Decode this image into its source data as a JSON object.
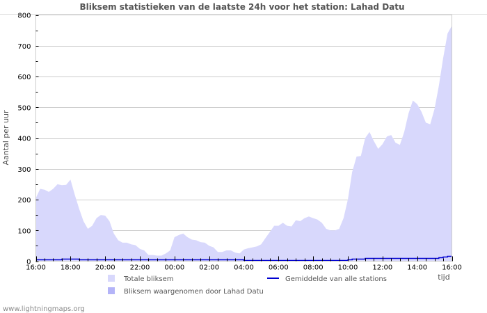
{
  "chart_data": {
    "type": "area",
    "title": "Bliksem statistieken van de laatste 24h voor het station: Lahad Datu",
    "xlabel": "tijd",
    "ylabel": "Aantal per uur",
    "ylim": [
      0,
      800
    ],
    "yticks": [
      0,
      100,
      200,
      300,
      400,
      500,
      600,
      700,
      800
    ],
    "xticks": [
      "16:00",
      "18:00",
      "20:00",
      "22:00",
      "00:00",
      "02:00",
      "04:00",
      "06:00",
      "08:00",
      "10:00",
      "12:00",
      "14:00",
      "16:00"
    ],
    "grid": true,
    "legend_position": "bottom",
    "x_step_minutes": 15,
    "x_start": "16:00",
    "x_end": "16:00",
    "series": [
      {
        "name": "Totale bliksem",
        "kind": "area",
        "color": "#d8d8fc",
        "values": [
          205,
          235,
          232,
          225,
          235,
          250,
          247,
          248,
          265,
          215,
          170,
          130,
          105,
          115,
          140,
          150,
          148,
          130,
          90,
          68,
          60,
          60,
          55,
          52,
          40,
          35,
          20,
          20,
          18,
          18,
          25,
          35,
          78,
          85,
          90,
          78,
          70,
          68,
          62,
          60,
          50,
          45,
          30,
          30,
          35,
          35,
          28,
          25,
          38,
          42,
          45,
          48,
          55,
          75,
          95,
          115,
          115,
          125,
          115,
          113,
          133,
          130,
          140,
          145,
          140,
          135,
          125,
          105,
          100,
          100,
          105,
          140,
          200,
          290,
          340,
          342,
          400,
          420,
          390,
          365,
          380,
          405,
          410,
          385,
          378,
          420,
          480,
          522,
          510,
          485,
          450,
          445,
          495,
          570,
          660,
          740,
          765
        ]
      },
      {
        "name": "Bliksem waargenomen door Lahad Datu",
        "kind": "area",
        "color": "#b4b4f8",
        "values": []
      },
      {
        "name": "Gemiddelde van alle stations",
        "kind": "line",
        "color": "#0000d0",
        "values": [
          3,
          3,
          3,
          3,
          3,
          4,
          5,
          5,
          6,
          5,
          4,
          3,
          3,
          3,
          3,
          3,
          4,
          3,
          3,
          3,
          3,
          3,
          3,
          3,
          3,
          3,
          3,
          3,
          3,
          3,
          3,
          3,
          3,
          3,
          3,
          3,
          3,
          3,
          3,
          3,
          3,
          3,
          3,
          3,
          3,
          3,
          3,
          3,
          2,
          2,
          2,
          2,
          2,
          2,
          2,
          2,
          2,
          2,
          2,
          2,
          2,
          2,
          2,
          2,
          2,
          2,
          2,
          2,
          2,
          2,
          2,
          2,
          3,
          5,
          5,
          5,
          7,
          7,
          7,
          7,
          7,
          7,
          7,
          7,
          7,
          7,
          8,
          9,
          9,
          9,
          8,
          8,
          9,
          10,
          12,
          14,
          15
        ]
      }
    ]
  },
  "legend": {
    "items": [
      {
        "label": "Totale bliksem",
        "swatch": "#d8d8fc",
        "kind": "box"
      },
      {
        "label": "Bliksem waargenomen door Lahad Datu",
        "swatch": "#b4b4f8",
        "kind": "box"
      },
      {
        "label": "Gemiddelde van alle stations",
        "swatch": "#0000d0",
        "kind": "line"
      }
    ]
  },
  "footer": {
    "text": "www.lightningmaps.org"
  },
  "colors": {
    "grid": "#cccccc",
    "frame": "#cccccc",
    "title": "#555555",
    "tick": "#000000"
  }
}
